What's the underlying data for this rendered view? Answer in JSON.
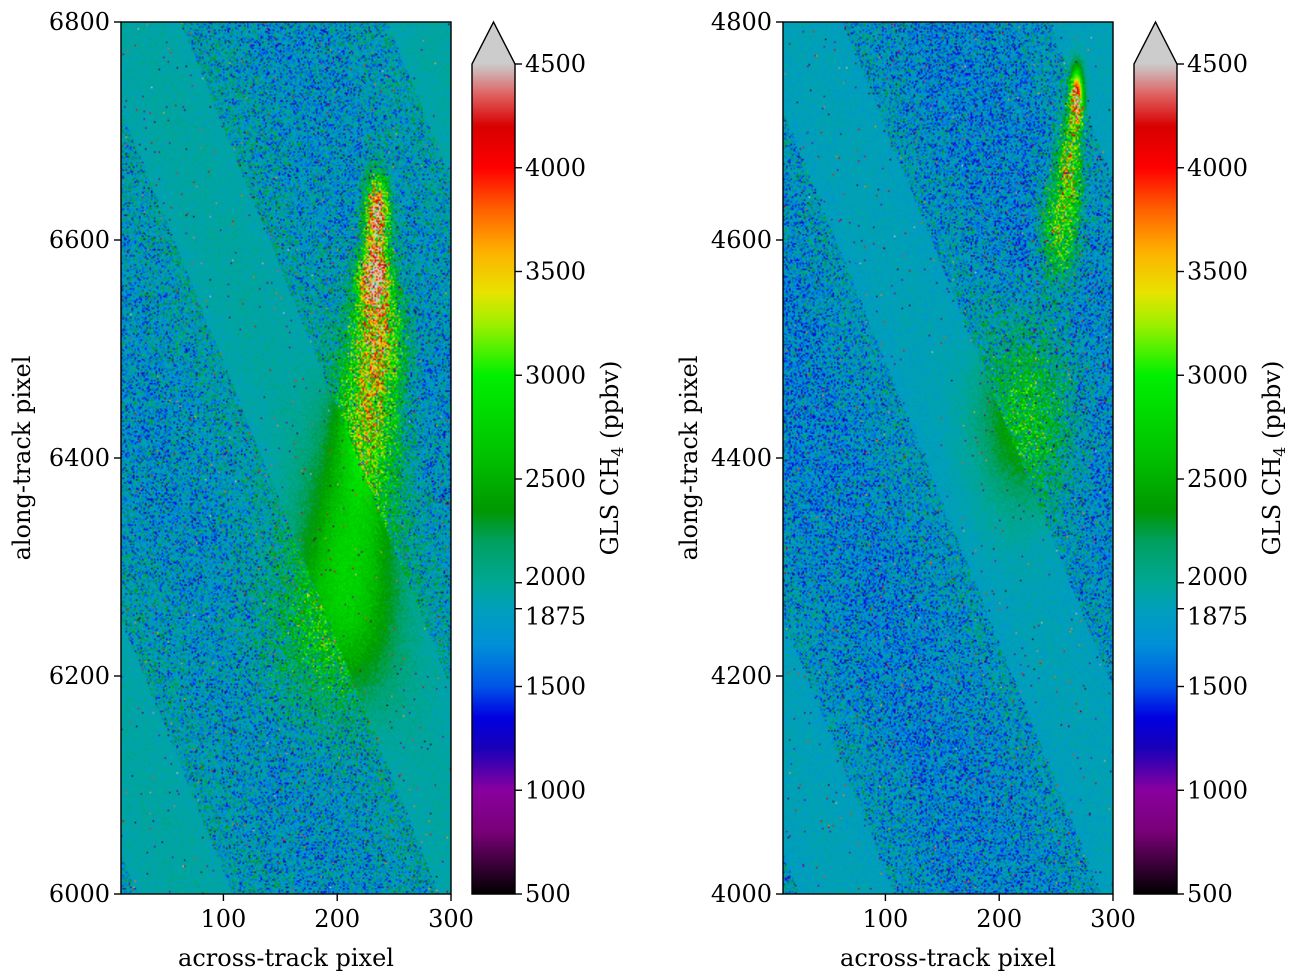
{
  "chart_data": [
    {
      "type": "heatmap",
      "xlabel": "across-track pixel",
      "ylabel": "along-track pixel",
      "xlim": [
        10,
        300
      ],
      "ylim": [
        6000,
        6800
      ],
      "x_ticks": [
        100,
        200,
        300
      ],
      "y_ticks": [
        6000,
        6200,
        6400,
        6600,
        6800
      ],
      "colorbar": {
        "label_prefix": "GLS CH",
        "label_sub": "4",
        "label_suffix": " (ppbv)",
        "ticks": [
          500,
          1000,
          1500,
          1875,
          2000,
          2500,
          3000,
          3500,
          4000,
          4500
        ],
        "range": [
          500,
          4500
        ],
        "extend": "max"
      },
      "field": {
        "background_mean_ppbv": 1875,
        "plumes": [
          {
            "x": 235,
            "y": 6620,
            "peak": 4300,
            "sx": 7,
            "sy": 25
          },
          {
            "x": 232,
            "y": 6565,
            "peak": 4100,
            "sx": 9,
            "sy": 18
          },
          {
            "x": 236,
            "y": 6515,
            "peak": 3300,
            "sx": 14,
            "sy": 35
          },
          {
            "x": 228,
            "y": 6440,
            "peak": 2900,
            "sx": 18,
            "sy": 50
          },
          {
            "x": 212,
            "y": 6330,
            "peak": 2500,
            "sx": 28,
            "sy": 70
          },
          {
            "x": 190,
            "y": 6240,
            "peak": 2350,
            "sx": 40,
            "sy": 55
          }
        ]
      }
    },
    {
      "type": "heatmap",
      "xlabel": "across-track pixel",
      "ylabel": "along-track pixel",
      "xlim": [
        10,
        300
      ],
      "ylim": [
        4000,
        4800
      ],
      "x_ticks": [
        100,
        200,
        300
      ],
      "y_ticks": [
        4000,
        4200,
        4400,
        4600,
        4800
      ],
      "colorbar": {
        "label_prefix": "GLS CH",
        "label_sub": "4",
        "label_suffix": " (ppbv)",
        "ticks": [
          500,
          1000,
          1500,
          1875,
          2000,
          2500,
          3000,
          3500,
          4000,
          4500
        ],
        "range": [
          500,
          4500
        ],
        "extend": "max"
      },
      "field": {
        "background_mean_ppbv": 1800,
        "plumes": [
          {
            "x": 268,
            "y": 4730,
            "peak": 4200,
            "sx": 4,
            "sy": 18
          },
          {
            "x": 262,
            "y": 4670,
            "peak": 3100,
            "sx": 7,
            "sy": 30
          },
          {
            "x": 253,
            "y": 4610,
            "peak": 2900,
            "sx": 10,
            "sy": 30
          },
          {
            "x": 225,
            "y": 4440,
            "peak": 2500,
            "sx": 28,
            "sy": 55
          }
        ]
      }
    }
  ],
  "colormap": {
    "stops": [
      [
        500,
        "#000000"
      ],
      [
        800,
        "#7a0078"
      ],
      [
        1000,
        "#8a00a0"
      ],
      [
        1200,
        "#1a00b8"
      ],
      [
        1350,
        "#0000e0"
      ],
      [
        1500,
        "#0055e8"
      ],
      [
        1700,
        "#0090d8"
      ],
      [
        1875,
        "#00a0bc"
      ],
      [
        2000,
        "#00a896"
      ],
      [
        2200,
        "#00a060"
      ],
      [
        2350,
        "#009800"
      ],
      [
        2600,
        "#00c000"
      ],
      [
        3000,
        "#00f000"
      ],
      [
        3250,
        "#a0f000"
      ],
      [
        3400,
        "#e8e400"
      ],
      [
        3600,
        "#ffb000"
      ],
      [
        3800,
        "#ff6000"
      ],
      [
        4000,
        "#ff0000"
      ],
      [
        4200,
        "#d80000"
      ],
      [
        4350,
        "#e06060"
      ],
      [
        4500,
        "#cccccc"
      ]
    ]
  }
}
